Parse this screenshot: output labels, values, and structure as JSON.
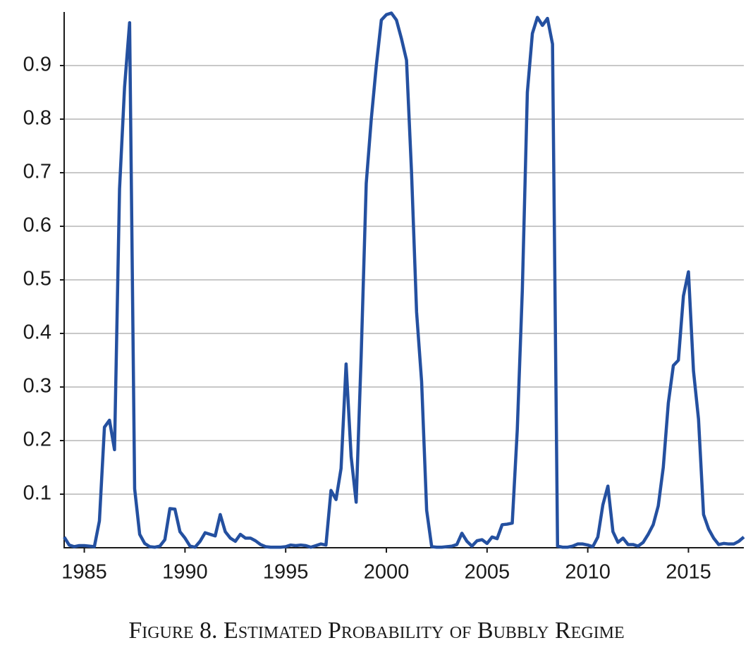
{
  "chart_data": {
    "type": "line",
    "title": "Figure 8. Estimated Probability of Bubbly Regime",
    "color": "#2450a0",
    "x": [
      1984,
      1984.25,
      1984.5,
      1984.75,
      1985,
      1985.25,
      1985.5,
      1985.75,
      1986,
      1986.25,
      1986.5,
      1986.75,
      1987,
      1987.25,
      1987.5,
      1987.75,
      1988,
      1988.25,
      1988.5,
      1988.75,
      1989,
      1989.25,
      1989.5,
      1989.75,
      1990,
      1990.25,
      1990.5,
      1990.75,
      1991,
      1991.25,
      1991.5,
      1991.75,
      1992,
      1992.25,
      1992.5,
      1992.75,
      1993,
      1993.25,
      1993.5,
      1993.75,
      1994,
      1994.25,
      1994.5,
      1994.75,
      1995,
      1995.25,
      1995.5,
      1995.75,
      1996,
      1996.25,
      1996.5,
      1996.75,
      1997,
      1997.25,
      1997.5,
      1997.75,
      1998,
      1998.25,
      1998.5,
      1998.75,
      1999,
      1999.25,
      1999.5,
      1999.75,
      2000,
      2000.25,
      2000.5,
      2000.75,
      2001,
      2001.25,
      2001.5,
      2001.75,
      2002,
      2002.25,
      2002.5,
      2002.75,
      2003,
      2003.25,
      2003.5,
      2003.75,
      2004,
      2004.25,
      2004.5,
      2004.75,
      2005,
      2005.25,
      2005.5,
      2005.75,
      2006,
      2006.25,
      2006.5,
      2006.75,
      2007,
      2007.25,
      2007.5,
      2007.75,
      2008,
      2008.25,
      2008.5,
      2008.75,
      2009,
      2009.25,
      2009.5,
      2009.75,
      2010,
      2010.25,
      2010.5,
      2010.75,
      2011,
      2011.25,
      2011.5,
      2011.75,
      2012,
      2012.25,
      2012.5,
      2012.75,
      2013,
      2013.25,
      2013.5,
      2013.75,
      2014,
      2014.25,
      2014.5,
      2014.75,
      2015,
      2015.25,
      2015.5,
      2015.75,
      2016,
      2016.25,
      2016.5,
      2016.75,
      2017,
      2017.25,
      2017.5,
      2017.75
    ],
    "values": [
      0.02,
      0.005,
      0.002,
      0.004,
      0.004,
      0.003,
      0.002,
      0.05,
      0.225,
      0.238,
      0.183,
      0.67,
      0.86,
      0.98,
      0.11,
      0.025,
      0.008,
      0.002,
      0.001,
      0.003,
      0.015,
      0.073,
      0.072,
      0.03,
      0.018,
      0.003,
      0.001,
      0.012,
      0.028,
      0.025,
      0.022,
      0.062,
      0.03,
      0.018,
      0.012,
      0.025,
      0.018,
      0.018,
      0.013,
      0.006,
      0.002,
      0.001,
      0.001,
      0.001,
      0.002,
      0.005,
      0.004,
      0.005,
      0.004,
      0.001,
      0.004,
      0.007,
      0.005,
      0.107,
      0.09,
      0.148,
      0.343,
      0.17,
      0.085,
      0.36,
      0.68,
      0.8,
      0.9,
      0.985,
      0.995,
      0.998,
      0.985,
      0.95,
      0.91,
      0.7,
      0.44,
      0.31,
      0.07,
      0.002,
      0.001,
      0.001,
      0.002,
      0.003,
      0.006,
      0.027,
      0.012,
      0.003,
      0.013,
      0.015,
      0.008,
      0.02,
      0.017,
      0.043,
      0.044,
      0.046,
      0.22,
      0.48,
      0.85,
      0.96,
      0.99,
      0.975,
      0.988,
      0.94,
      0.003,
      0.001,
      0.001,
      0.003,
      0.007,
      0.007,
      0.005,
      0.002,
      0.02,
      0.08,
      0.115,
      0.03,
      0.01,
      0.018,
      0.006,
      0.006,
      0.003,
      0.01,
      0.025,
      0.043,
      0.078,
      0.15,
      0.27,
      0.34,
      0.35,
      0.47,
      0.515,
      0.33,
      0.24,
      0.062,
      0.035,
      0.018,
      0.006,
      0.008,
      0.007,
      0.007,
      0.012,
      0.02
    ],
    "xlim": [
      1984,
      2017.75
    ],
    "xticks": [
      1985,
      1990,
      1995,
      2000,
      2005,
      2010,
      2015
    ],
    "ylim": [
      0,
      1
    ],
    "yticks": [
      0.1,
      0.2,
      0.3,
      0.4,
      0.5,
      0.6,
      0.7,
      0.8,
      0.9
    ],
    "grid": true
  }
}
